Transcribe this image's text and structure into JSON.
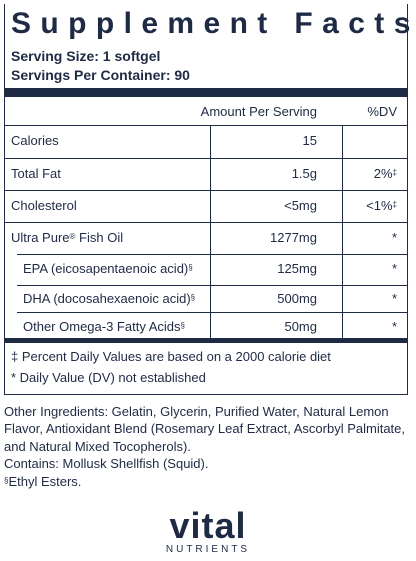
{
  "title": "Supplement Facts",
  "serving_size": "Serving Size: 1 softgel",
  "servings_per_container": "Servings Per Container: 90",
  "header": {
    "amount": "Amount Per Serving",
    "dv": "%DV"
  },
  "rows": [
    {
      "name": "Calories",
      "amount": "15",
      "dv": ""
    },
    {
      "name": "Total Fat",
      "amount": "1.5g",
      "dv": "2%",
      "dv_mark": "‡"
    },
    {
      "name": "Cholesterol",
      "amount": "<5mg",
      "dv": "<1%",
      "dv_mark": "‡"
    },
    {
      "name": "Ultra Pure",
      "name_mark": "®",
      "name_suffix": " Fish Oil",
      "amount": "1277mg",
      "dv": "*"
    },
    {
      "name": "EPA (eicosapentaenoic acid)",
      "name_mark": "§",
      "amount": "125mg",
      "dv": "*"
    },
    {
      "name": "DHA (docosahexaenoic acid)",
      "name_mark": "§",
      "amount": "500mg",
      "dv": "*"
    },
    {
      "name": "Other Omega-3 Fatty Acids",
      "name_mark": "§",
      "amount": "50mg",
      "dv": "*"
    }
  ],
  "footnotes": [
    "‡ Percent Daily Values are based on a 2000 calorie diet",
    "* Daily Value (DV) not established"
  ],
  "other_ingredients": [
    "Other Ingredients: Gelatin, Glycerin, Purified Water, Natural Lemon",
    "Flavor, Antioxidant Blend (Rosemary Leaf Extract, Ascorbyl Palmitate,",
    "and Natural Mixed Tocopherols).",
    "Contains: Mollusk Shellfish (Squid)."
  ],
  "ethyl_mark": "§",
  "ethyl_note": "Ethyl Esters.",
  "logo": {
    "main": "vital",
    "sub": "NUTRIENTS"
  }
}
